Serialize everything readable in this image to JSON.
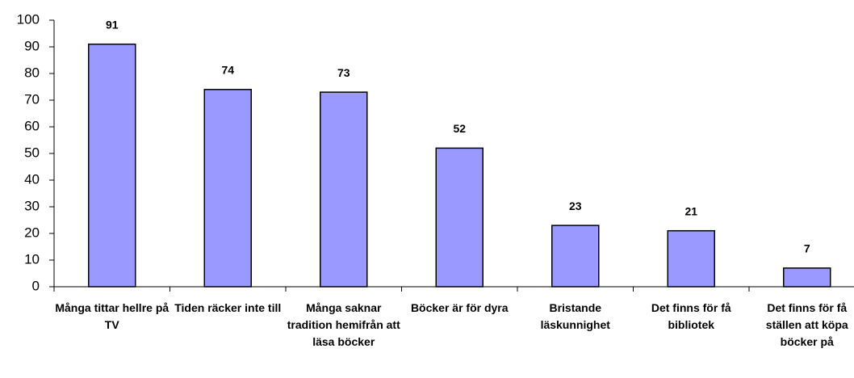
{
  "chart_data": {
    "type": "bar",
    "categories": [
      "Många tittar hellre på TV",
      "Tiden räcker inte till",
      "Många saknar tradition hemifrån att läsa böcker",
      "Böcker är för dyra",
      "Bristande läskunnighet",
      "Det finns för få bibliotek",
      "Det finns för få ställen att köpa böcker på"
    ],
    "values": [
      91,
      74,
      73,
      52,
      23,
      21,
      7
    ],
    "color": "#9999ff",
    "ylim": [
      0,
      100
    ],
    "yticks": [
      0,
      10,
      20,
      30,
      40,
      50,
      60,
      70,
      80,
      90,
      100
    ],
    "grid": false
  }
}
